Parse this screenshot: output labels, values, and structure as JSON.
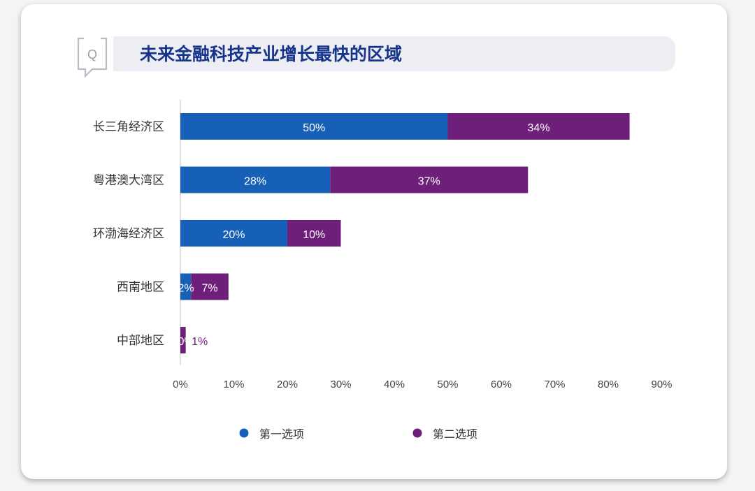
{
  "title": "未来金融科技产业增长最快的区域",
  "icon": "question-bubble-icon",
  "icon_letter": "Q",
  "colors": {
    "series1": "#1660b8",
    "series2": "#6e1f79",
    "accent": "#17348c"
  },
  "chart_data": {
    "type": "bar",
    "orientation": "horizontal",
    "stacked": true,
    "categories": [
      "长三角经济区",
      "粤港澳大湾区",
      "环渤海经济区",
      "西南地区",
      "中部地区"
    ],
    "series": [
      {
        "name": "第一选项",
        "values": [
          50,
          28,
          20,
          2,
          0
        ],
        "labels": [
          "50%",
          "28%",
          "20%",
          "2%",
          "0%"
        ]
      },
      {
        "name": "第二选项",
        "values": [
          34,
          37,
          10,
          7,
          1
        ],
        "labels": [
          "34%",
          "37%",
          "10%",
          "7%",
          "1%"
        ]
      }
    ],
    "xlim": [
      0,
      90
    ],
    "xticks": [
      "0%",
      "10%",
      "20%",
      "30%",
      "40%",
      "50%",
      "60%",
      "70%",
      "80%",
      "90%"
    ],
    "legend_position": "bottom",
    "grid": false
  }
}
